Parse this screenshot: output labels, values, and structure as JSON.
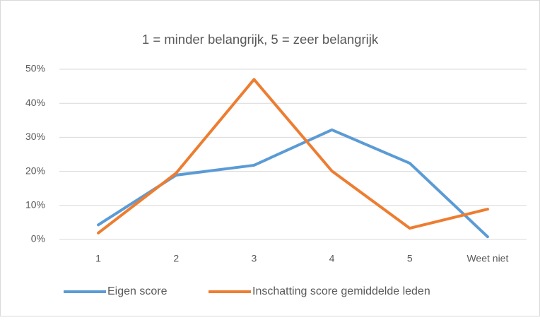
{
  "chart_data": {
    "type": "line",
    "title": "1 = minder belangrijk, 5 = zeer belangrijk",
    "categories": [
      "1",
      "2",
      "3",
      "4",
      "5",
      "Weet niet"
    ],
    "series": [
      {
        "name": "Eigen score",
        "color": "#5b9bd5",
        "values": [
          4.3,
          18.9,
          21.8,
          32.2,
          22.4,
          0.8
        ]
      },
      {
        "name": "Inschatting score gemiddelde leden",
        "color": "#ed7d31",
        "values": [
          1.9,
          19.5,
          47,
          20.1,
          3.3,
          8.9
        ]
      }
    ],
    "ylim": [
      0,
      50
    ],
    "yticks": [
      {
        "value": 0,
        "label": "0%"
      },
      {
        "value": 10,
        "label": "10%"
      },
      {
        "value": 20,
        "label": "20%"
      },
      {
        "value": 30,
        "label": "30%"
      },
      {
        "value": 40,
        "label": "40%"
      },
      {
        "value": 50,
        "label": "50%"
      }
    ],
    "grid": true,
    "legend": "bottom"
  }
}
